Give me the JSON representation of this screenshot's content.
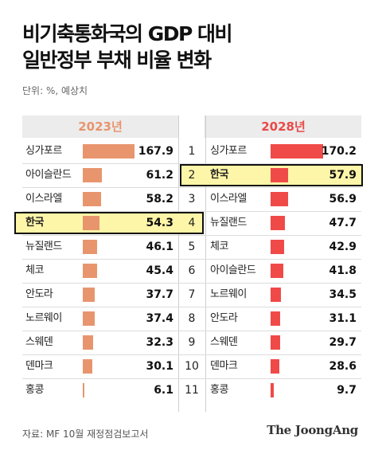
{
  "title_line1": "비기축통화국의 GDP 대비",
  "title_line2": "일반정부 부채 비율 변화",
  "unit": "단위: %, 예상치",
  "source": "자료: MF 10월 재정점검보고서",
  "brand": "The JoongAng",
  "colors": {
    "left_bar": "#e8956e",
    "right_bar": "#f04a48",
    "highlight": "#fdf6a8"
  },
  "chart_data": {
    "type": "bar",
    "title": "비기축통화국의 GDP 대비 일반정부 부채 비율 변화",
    "unit": "단위: %, 예상치",
    "ranks": [
      "1",
      "2",
      "3",
      "4",
      "5",
      "6",
      "7",
      "8",
      "9",
      "10",
      "11"
    ],
    "series": [
      {
        "name": "2023년",
        "categories": [
          "싱가포르",
          "아이슬란드",
          "이스라엘",
          "한국",
          "뉴질랜드",
          "체코",
          "안도라",
          "노르웨이",
          "스웨덴",
          "덴마크",
          "홍콩"
        ],
        "values": [
          167.9,
          61.2,
          58.2,
          54.3,
          46.1,
          45.4,
          37.7,
          37.4,
          32.3,
          30.1,
          6.1
        ],
        "value_labels": [
          "167.9",
          "61.2",
          "58.2",
          "54.3",
          "46.1",
          "45.4",
          "37.7",
          "37.4",
          "32.3",
          "30.1",
          "6.1"
        ],
        "highlight_index": 3
      },
      {
        "name": "2028년",
        "categories": [
          "싱가포르",
          "한국",
          "이스라엘",
          "뉴질랜드",
          "체코",
          "아이슬란드",
          "노르웨이",
          "안도라",
          "스웨덴",
          "덴마크",
          "홍콩"
        ],
        "values": [
          170.2,
          57.9,
          56.9,
          47.7,
          42.9,
          41.8,
          34.5,
          31.1,
          29.7,
          28.6,
          9.7
        ],
        "value_labels": [
          "170.2",
          "57.9",
          "56.9",
          "47.7",
          "42.9",
          "41.8",
          "34.5",
          "31.1",
          "29.7",
          "28.6",
          "9.7"
        ],
        "highlight_index": 1
      }
    ]
  }
}
